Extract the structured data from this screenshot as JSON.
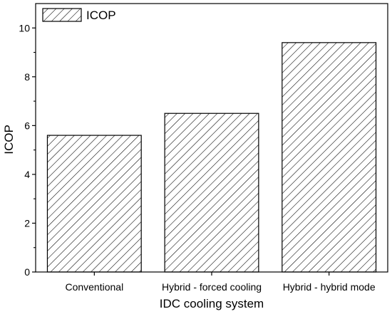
{
  "chart_data": {
    "type": "bar",
    "categories": [
      "Conventional",
      "Hybrid - forced cooling",
      "Hybrid - hybrid mode"
    ],
    "series": [
      {
        "name": "ICOP",
        "values": [
          5.6,
          6.5,
          9.4
        ]
      }
    ],
    "xlabel": "IDC cooling system",
    "ylabel": "ICOP",
    "ylim": [
      0,
      11
    ],
    "yticks": [
      0,
      2,
      4,
      6,
      8,
      10
    ],
    "grid": false,
    "legend": "top-left",
    "bar_fill": "hatched",
    "colors": {
      "background": "#ffffff",
      "axis": "#000000",
      "bar_edge": "#000000",
      "hatch": "#000000"
    }
  }
}
